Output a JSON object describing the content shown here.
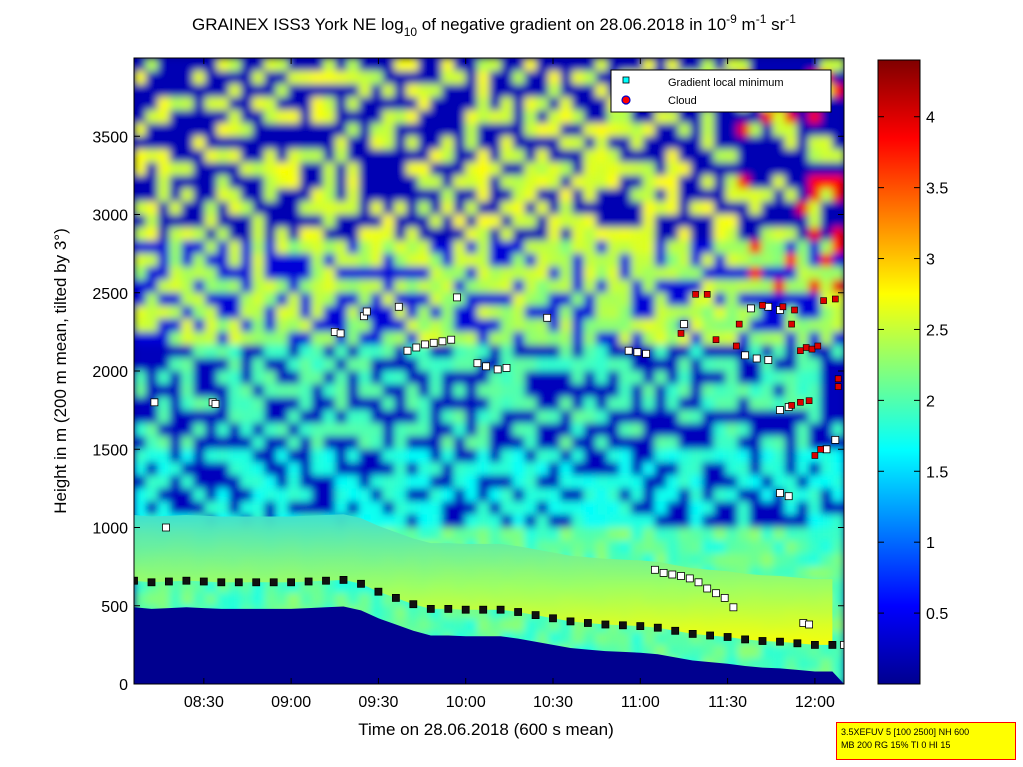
{
  "chart_data": {
    "type": "heatmap",
    "title_prefix": "GRAINEX ISS3 York NE log",
    "title_sub": "10",
    "title_middle": " of negative gradient on 28.06.2018 in 10",
    "title_exp1": "-9",
    "title_unit_m": " m",
    "title_exp2": "-1",
    "title_unit_sr": " sr",
    "title_exp3": "-1",
    "xlabel": "Time on 28.06.2018 (600 s mean)",
    "ylabel": "Height in m (200 m mean, tilted by 3°)",
    "x_ticks": [
      "08:30",
      "09:00",
      "09:30",
      "10:00",
      "10:30",
      "11:00",
      "11:30",
      "12:00"
    ],
    "x_tick_minutes": [
      510,
      540,
      570,
      600,
      630,
      660,
      690,
      720
    ],
    "xlim_minutes": [
      486,
      730
    ],
    "y_ticks": [
      "0",
      "500",
      "1000",
      "1500",
      "2000",
      "2500",
      "3000",
      "3500"
    ],
    "y_tick_values": [
      0,
      500,
      1000,
      1500,
      2000,
      2500,
      3000,
      3500
    ],
    "ylim": [
      0,
      4000
    ],
    "colorbar": {
      "ticks": [
        "0.5",
        "1",
        "1.5",
        "2",
        "2.5",
        "3",
        "3.5",
        "4"
      ],
      "tick_values": [
        0.5,
        1,
        1.5,
        2,
        2.5,
        3,
        3.5,
        4
      ],
      "range": [
        0,
        4.4
      ],
      "colormap": "jet"
    },
    "legend": {
      "placement": "top-right",
      "entries": [
        {
          "label": "Gradient local minimum",
          "marker": "square",
          "color": "#00ffff"
        },
        {
          "label": "Cloud",
          "marker": "circle",
          "color": "#ff0000",
          "edge": "#0000cc"
        }
      ]
    },
    "series": [
      {
        "name": "Gradient local minimum",
        "points": [
          [
            486,
            660
          ],
          [
            492,
            650
          ],
          [
            498,
            655
          ],
          [
            504,
            660
          ],
          [
            510,
            655
          ],
          [
            516,
            650
          ],
          [
            522,
            650
          ],
          [
            528,
            650
          ],
          [
            534,
            650
          ],
          [
            540,
            650
          ],
          [
            546,
            655
          ],
          [
            552,
            660
          ],
          [
            558,
            665
          ],
          [
            564,
            640
          ],
          [
            570,
            590
          ],
          [
            576,
            550
          ],
          [
            582,
            510
          ],
          [
            588,
            480
          ],
          [
            594,
            480
          ],
          [
            600,
            475
          ],
          [
            606,
            475
          ],
          [
            612,
            475
          ],
          [
            618,
            460
          ],
          [
            624,
            440
          ],
          [
            630,
            420
          ],
          [
            636,
            400
          ],
          [
            642,
            390
          ],
          [
            648,
            380
          ],
          [
            654,
            375
          ],
          [
            660,
            370
          ],
          [
            666,
            360
          ],
          [
            672,
            340
          ],
          [
            678,
            320
          ],
          [
            684,
            310
          ],
          [
            690,
            300
          ],
          [
            696,
            285
          ],
          [
            702,
            275
          ],
          [
            708,
            270
          ],
          [
            714,
            260
          ],
          [
            720,
            250
          ],
          [
            726,
            250
          ],
          [
            493,
            1800
          ],
          [
            497,
            1000
          ],
          [
            513,
            1800
          ],
          [
            514,
            1790
          ],
          [
            555,
            2250
          ],
          [
            557,
            2240
          ],
          [
            565,
            2350
          ],
          [
            566,
            2380
          ],
          [
            577,
            2410
          ],
          [
            580,
            2130
          ],
          [
            583,
            2150
          ],
          [
            586,
            2170
          ],
          [
            589,
            2180
          ],
          [
            592,
            2190
          ],
          [
            595,
            2200
          ],
          [
            604,
            2050
          ],
          [
            607,
            2030
          ],
          [
            611,
            2010
          ],
          [
            614,
            2020
          ],
          [
            597,
            2470
          ],
          [
            628,
            2340
          ],
          [
            665,
            730
          ],
          [
            668,
            710
          ],
          [
            671,
            700
          ],
          [
            674,
            690
          ],
          [
            677,
            675
          ],
          [
            680,
            650
          ],
          [
            683,
            610
          ],
          [
            686,
            580
          ],
          [
            689,
            550
          ],
          [
            692,
            490
          ],
          [
            656,
            2130
          ],
          [
            659,
            2120
          ],
          [
            662,
            2110
          ],
          [
            675,
            2300
          ],
          [
            696,
            2100
          ],
          [
            700,
            2080
          ],
          [
            704,
            2070
          ],
          [
            698,
            2400
          ],
          [
            704,
            2410
          ],
          [
            708,
            2390
          ],
          [
            708,
            1750
          ],
          [
            711,
            1770
          ],
          [
            708,
            1220
          ],
          [
            711,
            1200
          ],
          [
            716,
            390
          ],
          [
            718,
            380
          ],
          [
            724,
            1500
          ],
          [
            727,
            1560
          ],
          [
            730,
            250
          ]
        ]
      },
      {
        "name": "Cloud",
        "points": [
          [
            679,
            2490
          ],
          [
            683,
            2490
          ],
          [
            674,
            2240
          ],
          [
            686,
            2200
          ],
          [
            693,
            2160
          ],
          [
            702,
            2420
          ],
          [
            709,
            2410
          ],
          [
            713,
            2390
          ],
          [
            715,
            2130
          ],
          [
            717,
            2150
          ],
          [
            719,
            2140
          ],
          [
            721,
            2160
          ],
          [
            712,
            1780
          ],
          [
            715,
            1800
          ],
          [
            718,
            1810
          ],
          [
            720,
            1460
          ],
          [
            722,
            1500
          ],
          [
            723,
            2450
          ],
          [
            728,
            1950
          ],
          [
            728,
            1900
          ],
          [
            694,
            2300
          ],
          [
            712,
            2300
          ],
          [
            727,
            2460
          ]
        ]
      }
    ]
  },
  "info_box": {
    "line1": "3.5XEFUV 5 [100 2500] NH 600",
    "line2": "MB 200 RG 15% TI 0 HI 15"
  },
  "colors": {
    "background_low": "#00008f",
    "boundary_layer_edge": "#ffff00",
    "frame": "#000000"
  }
}
